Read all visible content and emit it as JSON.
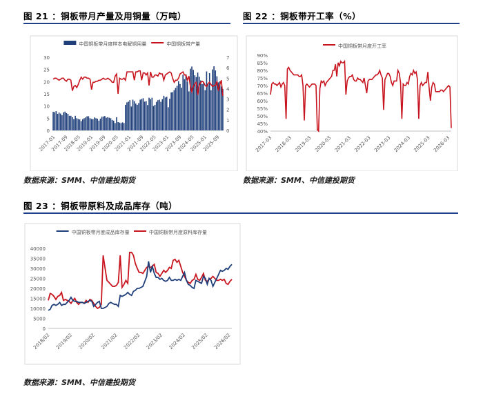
{
  "figures": [
    {
      "title": "图 21 ：铜板带月产量及用铜量（万吨）",
      "source": "数据来源：SMM、中信建投期货"
    },
    {
      "title": "图 22 ：铜板带开工率（%）",
      "source": "数据来源：SMM、中信建投期货"
    },
    {
      "title": "图 23 ：铜板带原料及成品库存（吨）",
      "source": "数据来源：SMM、中信建投期货"
    }
  ],
  "colors": {
    "navy": "#1f3f7a",
    "red": "#c8141e",
    "rule": "#1c3f87"
  },
  "chart_data": [
    {
      "type": "bar",
      "title": "",
      "xlabel": "",
      "ylabel": "",
      "legend_position": "top",
      "x_ticks": [
        "2017-01",
        "2017-09",
        "2018-05",
        "2019-01",
        "2019-09",
        "2020-05",
        "2021-01",
        "2021-09",
        "2022-05",
        "2023-01",
        "2023-09",
        "2024-05",
        "2025-01",
        "2025-09"
      ],
      "ylim_left": [
        0,
        30
      ],
      "y_ticks_left": [
        0,
        5,
        10,
        15,
        20,
        25,
        30
      ],
      "ylim_right": [
        0,
        7
      ],
      "y_ticks_right": [
        0,
        1,
        2,
        3,
        4,
        5,
        6,
        7
      ],
      "series": [
        {
          "name": "中国铜板带月度样本电解铜用量",
          "axis": "left",
          "kind": "bar",
          "values": [
            7.6,
            7.5,
            7.9,
            6.8,
            7.3,
            6.9,
            6.2,
            7.4,
            7.7,
            7.1,
            6.8,
            6.0,
            6.0,
            5.4,
            4.6,
            6.0,
            5.0,
            4.7,
            4.5,
            3.8,
            4.6,
            5.0,
            5.3,
            5.8,
            5.8,
            5.0,
            4.7,
            4.6,
            5.3,
            5.0,
            4.8,
            4.0,
            4.8,
            5.6,
            5.7,
            5.9,
            5.2,
            5.4,
            5.2,
            5.0,
            4.3,
            4.0,
            3.0,
            5.4,
            3.4,
            3.2,
            3.0,
            3.3,
            3.0,
            10.5,
            11.5,
            11.8,
            12.4,
            9.8,
            12.6,
            12.0,
            11.0,
            10.5,
            11.2,
            12.6,
            12.9,
            13.2,
            11.8,
            12.0,
            10.4,
            13.4,
            12.8,
            13.4,
            10.0,
            10.5,
            11.7,
            12.4,
            12.6,
            11.7,
            12.8,
            14.2,
            13.5,
            13.8,
            9.5,
            13.0,
            15.6,
            15.7,
            16.5,
            17.4,
            18.3,
            20.2,
            19.0,
            17.5,
            22.8,
            21.0,
            23.0,
            20.0,
            16.0,
            25.3,
            26.2,
            24.8,
            22.6,
            21.9,
            23.7,
            22.0,
            20.5,
            19.0,
            20.0,
            16.5,
            24.2,
            19.0,
            23.5,
            16.5,
            25.0,
            26.3,
            24.6,
            22.2,
            19.7,
            20.1,
            18.0,
            17.0
          ]
        },
        {
          "name": "中国铜板带产量",
          "axis": "right",
          "kind": "line",
          "values": [
            4.9,
            5.0,
            5.0,
            4.9,
            4.8,
            4.9,
            5.0,
            5.0,
            4.8,
            4.7,
            4.9,
            4.9,
            4.8,
            3.8,
            4.2,
            4.3,
            4.1,
            4.4,
            4.8,
            5.1,
            4.9,
            5.1,
            5.1,
            5.0,
            5.0,
            4.9,
            3.9,
            4.6,
            4.6,
            4.7,
            4.7,
            4.8,
            4.8,
            4.9,
            5.0,
            4.9,
            4.9,
            5.0,
            4.9,
            4.8,
            4.6,
            4.6,
            5.2,
            5.4,
            3.5,
            5.0,
            4.9,
            4.9,
            5.0,
            4.8,
            5.6,
            5.6,
            5.6,
            5.6,
            5.6,
            4.8,
            5.6,
            5.6,
            5.7,
            5.7,
            4.8,
            5.5,
            5.5,
            5.3,
            5.5,
            4.3,
            5.6,
            5.1,
            5.1,
            5.3,
            5.3,
            5.2,
            5.5,
            5.4,
            5.4,
            4.8,
            5.3,
            5.4,
            5.5,
            5.6,
            5.5,
            5.0,
            4.6,
            4.8,
            4.8,
            5.0,
            5.4,
            5.5,
            5.6,
            5.3,
            5.3,
            4.8,
            5.2,
            4.2,
            3.7,
            4.2,
            4.5,
            4.6,
            3.4,
            4.3,
            4.6,
            4.7,
            4.6,
            4.3,
            4.2,
            4.5,
            4.6,
            4.4,
            4.2,
            4.3,
            4.3,
            4.7,
            3.8,
            4.4,
            4.8,
            3.3
          ]
        }
      ]
    },
    {
      "type": "line",
      "title": "",
      "xlabel": "",
      "ylabel": "",
      "legend_position": "top",
      "x_ticks": [
        "2017-03",
        "2018-03",
        "2019-03",
        "2020-03",
        "2021-03",
        "2022-03",
        "2023-03",
        "2024-03",
        "2025-03",
        "2026-03"
      ],
      "ylim": [
        40,
        90
      ],
      "y_ticks": [
        "40%",
        "45%",
        "50%",
        "55%",
        "60%",
        "65%",
        "70%",
        "75%",
        "80%",
        "85%",
        "90%"
      ],
      "series": [
        {
          "name": "中国铜板带月度开工率",
          "values": [
            64,
            71,
            72,
            71,
            71,
            70,
            71,
            72,
            69,
            71,
            72,
            70,
            48,
            81,
            82,
            80,
            79,
            78,
            77,
            77,
            77,
            77,
            76,
            76,
            77,
            70,
            47,
            70,
            71,
            70,
            69,
            70,
            71,
            71,
            71,
            70,
            41,
            40,
            68,
            73,
            72,
            73,
            70,
            72,
            73,
            74,
            75,
            76,
            80,
            80,
            84,
            76,
            85,
            83,
            86,
            85,
            85,
            86,
            64,
            73,
            75,
            76,
            76,
            77,
            74,
            73,
            73,
            75,
            74,
            74,
            73,
            72,
            75,
            70,
            65,
            73,
            74,
            74,
            74,
            75,
            76,
            77,
            77,
            78,
            80,
            77,
            75,
            54,
            74,
            76,
            78,
            78,
            76,
            72,
            70,
            73,
            73,
            73,
            80,
            78,
            72,
            48,
            71,
            70,
            70,
            72,
            71,
            76,
            78,
            77,
            80,
            78,
            79,
            74,
            48,
            70,
            72,
            70,
            71,
            72,
            72,
            79,
            68,
            60,
            69,
            72,
            71,
            66,
            66,
            66,
            66,
            67,
            67,
            66,
            67,
            68,
            69,
            70,
            69,
            42
          ]
        }
      ]
    },
    {
      "type": "line",
      "title": "",
      "xlabel": "",
      "ylabel": "",
      "legend_position": "top",
      "x_ticks": [
        "2018/02",
        "2019/02",
        "2020/02",
        "2021/02",
        "2022/02",
        "2023/02",
        "2024/02",
        "2025/02",
        "2026/02"
      ],
      "ylim": [
        0,
        40000
      ],
      "y_ticks": [
        0,
        5000,
        10000,
        15000,
        20000,
        25000,
        30000,
        35000,
        40000
      ],
      "series": [
        {
          "name": "中国铜板带月度成品库存量",
          "values": [
            9000,
            9500,
            11500,
            12000,
            11500,
            12000,
            13000,
            11500,
            12000,
            12000,
            13000,
            14000,
            15500,
            14000,
            13500,
            13500,
            13000,
            13000,
            13000,
            12500,
            13000,
            13500,
            14000,
            13500,
            11000,
            12000,
            13000,
            13500,
            10000,
            10000,
            10500,
            11000,
            12500,
            13000,
            12500,
            12000,
            12000,
            11000,
            16500,
            16000,
            16500,
            17000,
            18000,
            17000,
            16500,
            18500,
            19000,
            20000,
            20000,
            20500,
            21000,
            23500,
            26000,
            33500,
            28000,
            31000,
            27500,
            25500,
            25500,
            24500,
            25000,
            24000,
            23500,
            24000,
            25500,
            24000,
            24000,
            24500,
            24000,
            24500,
            24000,
            26000,
            28000,
            24000,
            22000,
            21500,
            20500,
            20000,
            24000,
            23500,
            23000,
            22500,
            26000,
            25000,
            22000,
            25000,
            24000,
            21000,
            23000,
            25000,
            27000,
            29000,
            28500,
            29000,
            30000,
            29500,
            31000,
            32000
          ]
        },
        {
          "name": "中国铜板带月度原料库存量",
          "values": [
            14000,
            17500,
            17000,
            16000,
            14500,
            16000,
            16500,
            18000,
            14000,
            14500,
            14000,
            13500,
            12500,
            14000,
            15000,
            13000,
            12000,
            13000,
            13000,
            12500,
            14000,
            13000,
            14500,
            14000,
            12500,
            11000,
            10000,
            10500,
            12000,
            36500,
            30000,
            24000,
            23000,
            22000,
            21000,
            21000,
            21500,
            23000,
            36500,
            20500,
            22000,
            24000,
            22500,
            38000,
            38000,
            36500,
            32500,
            30000,
            28000,
            28000,
            27500,
            29000,
            30500,
            31000,
            30500,
            31000,
            32000,
            28000,
            27500,
            26000,
            27500,
            29000,
            28000,
            29000,
            30500,
            30000,
            34000,
            34500,
            33000,
            34000,
            31000,
            28000,
            26000,
            24000,
            23000,
            22500,
            24000,
            24500,
            27000,
            24500,
            24000,
            25500,
            27500,
            24000,
            23500,
            24500,
            25000,
            26000,
            25000,
            24000,
            24000,
            24500,
            24000,
            24500,
            22500,
            22000,
            23500,
            24500
          ]
        }
      ]
    }
  ]
}
